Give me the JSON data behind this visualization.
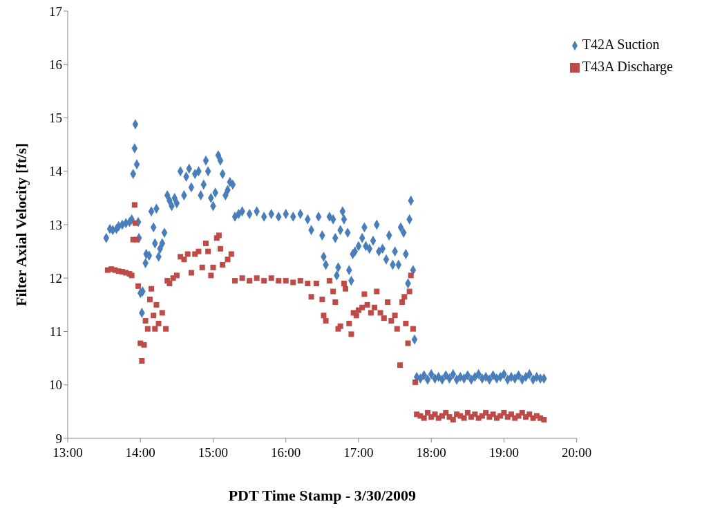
{
  "chart_data": {
    "type": "scatter",
    "xlabel": "PDT Time Stamp - 3/30/2009",
    "ylabel": "Filter Axial Velocity [ft/s]",
    "xlim": [
      13,
      20
    ],
    "xticks": [
      {
        "value": 13,
        "label": "13:00"
      },
      {
        "value": 14,
        "label": "14:00"
      },
      {
        "value": 15,
        "label": "15:00"
      },
      {
        "value": 16,
        "label": "16:00"
      },
      {
        "value": 17,
        "label": "17:00"
      },
      {
        "value": 18,
        "label": "18:00"
      },
      {
        "value": 19,
        "label": "19:00"
      },
      {
        "value": 20,
        "label": "20:00"
      }
    ],
    "ylim": [
      9,
      17
    ],
    "yticks": [
      9,
      10,
      11,
      12,
      13,
      14,
      15,
      16,
      17
    ],
    "grid": false,
    "legend": "top right",
    "series": [
      {
        "name": "T42A Suction",
        "color": "#4a7ebb",
        "marker": "diamond",
        "x": [
          13.53,
          13.58,
          13.62,
          13.67,
          13.7,
          13.75,
          13.8,
          13.85,
          13.88,
          13.9,
          13.92,
          13.93,
          13.95,
          13.97,
          13.98,
          14.0,
          14.02,
          14.03,
          14.07,
          14.08,
          14.12,
          14.15,
          14.18,
          14.2,
          14.22,
          14.25,
          14.27,
          14.3,
          14.33,
          14.37,
          14.4,
          14.43,
          14.47,
          14.5,
          14.55,
          14.6,
          14.63,
          14.67,
          14.7,
          14.75,
          14.8,
          14.83,
          14.87,
          14.9,
          14.93,
          14.97,
          15.0,
          15.03,
          15.07,
          15.1,
          15.13,
          15.17,
          15.2,
          15.23,
          15.27,
          15.3,
          15.35,
          15.4,
          15.5,
          15.6,
          15.7,
          15.8,
          15.9,
          16.0,
          16.1,
          16.2,
          16.3,
          16.35,
          16.45,
          16.5,
          16.52,
          16.55,
          16.6,
          16.65,
          16.68,
          16.7,
          16.72,
          16.75,
          16.78,
          16.8,
          16.85,
          16.87,
          16.9,
          16.92,
          16.95,
          17.0,
          17.05,
          17.08,
          17.1,
          17.15,
          17.2,
          17.25,
          17.28,
          17.33,
          17.38,
          17.42,
          17.47,
          17.5,
          17.55,
          17.58,
          17.62,
          17.65,
          17.68,
          17.7,
          17.72,
          17.75,
          17.77,
          17.8,
          17.85,
          17.9,
          17.95,
          18.0,
          18.05,
          18.1,
          18.15,
          18.2,
          18.25,
          18.3,
          18.35,
          18.4,
          18.45,
          18.5,
          18.55,
          18.6,
          18.65,
          18.7,
          18.75,
          18.8,
          18.85,
          18.9,
          18.95,
          19.0,
          19.05,
          19.1,
          19.15,
          19.2,
          19.25,
          19.3,
          19.35,
          19.4,
          19.45,
          19.5,
          19.55
        ],
        "values": [
          12.75,
          12.92,
          12.9,
          12.92,
          12.97,
          13.0,
          13.03,
          13.05,
          13.1,
          13.95,
          14.43,
          14.88,
          14.13,
          13.05,
          12.75,
          11.72,
          11.35,
          11.75,
          12.28,
          12.45,
          12.42,
          13.25,
          12.95,
          12.65,
          13.3,
          12.4,
          12.55,
          12.65,
          12.85,
          13.55,
          13.45,
          13.35,
          13.5,
          13.4,
          14.0,
          13.55,
          13.9,
          14.05,
          13.7,
          13.95,
          14.0,
          13.55,
          13.75,
          14.2,
          14.0,
          13.5,
          13.35,
          13.6,
          14.3,
          14.2,
          13.95,
          13.55,
          13.65,
          13.8,
          13.75,
          13.15,
          13.2,
          13.25,
          13.2,
          13.25,
          13.15,
          13.2,
          13.15,
          13.2,
          13.15,
          13.2,
          13.1,
          12.9,
          13.15,
          12.8,
          12.4,
          12.25,
          13.15,
          13.1,
          12.75,
          12.05,
          12.2,
          12.9,
          13.25,
          13.1,
          12.85,
          12.15,
          11.95,
          12.45,
          12.5,
          12.6,
          12.75,
          12.95,
          12.6,
          12.55,
          12.7,
          13.0,
          12.5,
          12.55,
          12.35,
          12.8,
          12.25,
          12.5,
          12.25,
          12.95,
          12.85,
          12.45,
          11.9,
          13.1,
          13.45,
          12.15,
          10.85,
          10.15,
          10.12,
          10.18,
          10.1,
          10.2,
          10.12,
          10.15,
          10.1,
          10.18,
          10.12,
          10.2,
          10.1,
          10.15,
          10.12,
          10.18,
          10.1,
          10.15,
          10.2,
          10.12,
          10.15,
          10.1,
          10.18,
          10.12,
          10.15,
          10.2,
          10.1,
          10.15,
          10.12,
          10.18,
          10.1,
          10.15,
          10.2,
          10.1,
          10.15,
          10.12,
          10.12
        ]
      },
      {
        "name": "T43A Discharge",
        "color": "#be4b48",
        "marker": "square",
        "x": [
          13.55,
          13.6,
          13.65,
          13.7,
          13.75,
          13.8,
          13.85,
          13.88,
          13.9,
          13.92,
          13.93,
          13.95,
          13.97,
          14.0,
          14.02,
          14.05,
          14.07,
          14.1,
          14.13,
          14.15,
          14.18,
          14.2,
          14.22,
          14.25,
          14.3,
          14.35,
          14.37,
          14.4,
          14.45,
          14.5,
          14.55,
          14.6,
          14.65,
          14.7,
          14.75,
          14.8,
          14.85,
          14.9,
          14.93,
          14.97,
          15.0,
          15.05,
          15.08,
          15.1,
          15.13,
          15.2,
          15.25,
          15.3,
          15.4,
          15.5,
          15.6,
          15.7,
          15.8,
          15.9,
          16.0,
          16.1,
          16.2,
          16.3,
          16.35,
          16.42,
          16.5,
          16.52,
          16.55,
          16.6,
          16.65,
          16.68,
          16.72,
          16.75,
          16.8,
          16.82,
          16.87,
          16.9,
          16.93,
          16.97,
          17.0,
          17.05,
          17.08,
          17.12,
          17.17,
          17.22,
          17.25,
          17.3,
          17.35,
          17.4,
          17.45,
          17.5,
          17.53,
          17.57,
          17.6,
          17.63,
          17.65,
          17.68,
          17.7,
          17.72,
          17.75,
          17.78,
          17.8,
          17.85,
          17.9,
          17.95,
          18.0,
          18.05,
          18.1,
          18.15,
          18.2,
          18.25,
          18.3,
          18.35,
          18.4,
          18.45,
          18.5,
          18.55,
          18.6,
          18.65,
          18.7,
          18.75,
          18.8,
          18.85,
          18.9,
          18.95,
          19.0,
          19.05,
          19.1,
          19.15,
          19.2,
          19.25,
          19.3,
          19.35,
          19.4,
          19.45,
          19.5,
          19.55
        ],
        "values": [
          12.15,
          12.17,
          12.15,
          12.13,
          12.12,
          12.1,
          12.08,
          12.05,
          12.72,
          13.37,
          13.03,
          12.72,
          11.85,
          10.78,
          10.45,
          10.75,
          11.2,
          11.05,
          11.6,
          11.8,
          11.3,
          11.05,
          11.5,
          11.15,
          11.35,
          11.05,
          11.95,
          11.9,
          12.0,
          12.05,
          12.4,
          12.35,
          12.45,
          12.1,
          12.45,
          12.5,
          12.2,
          12.65,
          12.5,
          12.05,
          12.2,
          12.75,
          12.8,
          12.55,
          12.25,
          12.35,
          12.45,
          11.95,
          12.0,
          11.95,
          12.0,
          11.95,
          12.0,
          11.95,
          11.95,
          11.92,
          11.95,
          11.9,
          11.65,
          11.9,
          11.6,
          11.3,
          11.2,
          11.95,
          11.75,
          11.55,
          11.05,
          11.1,
          11.9,
          11.8,
          11.15,
          10.95,
          11.35,
          11.3,
          11.4,
          11.45,
          11.7,
          11.5,
          11.35,
          11.45,
          11.75,
          11.35,
          11.25,
          11.55,
          11.2,
          11.3,
          11.05,
          10.37,
          11.55,
          11.65,
          11.15,
          10.78,
          11.75,
          12.05,
          11.05,
          10.05,
          9.45,
          9.42,
          9.38,
          9.48,
          9.4,
          9.45,
          9.38,
          9.42,
          9.48,
          9.4,
          9.35,
          9.45,
          9.42,
          9.38,
          9.48,
          9.4,
          9.45,
          9.38,
          9.42,
          9.48,
          9.4,
          9.45,
          9.38,
          9.42,
          9.48,
          9.4,
          9.45,
          9.38,
          9.42,
          9.48,
          9.4,
          9.45,
          9.38,
          9.42,
          9.38,
          9.35
        ]
      }
    ]
  }
}
